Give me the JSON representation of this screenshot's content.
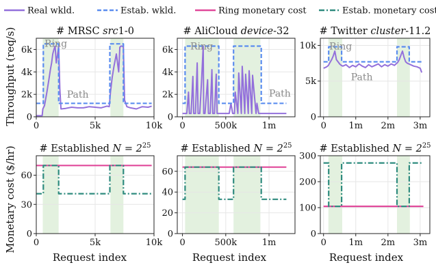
{
  "legend": {
    "items": [
      {
        "label": "Real wkld.",
        "color": "#9370DB",
        "style": "solid"
      },
      {
        "label": "Estab. wkld.",
        "color": "#5B8DEF",
        "style": "dashed"
      },
      {
        "label": "Ring monetary cost",
        "color": "#E0489A",
        "style": "solid"
      },
      {
        "label": "Estab. monetary cost",
        "color": "#2E8B7E",
        "style": "dashdot"
      }
    ]
  },
  "labels": {
    "ylabel_top": "Throughput (req/s)",
    "ylabel_bottom": "Monetary cost ($/hr)",
    "xlabel": "Request index",
    "ring": "Ring",
    "path": "Path"
  },
  "colors": {
    "real": "#9370DB",
    "estab": "#5B8DEF",
    "ring_cost": "#E0489A",
    "estab_cost": "#2E8B7E",
    "shade": "#E3F1DF",
    "grid": "#e6e6e6"
  },
  "chart_data": [
    {
      "type": "line",
      "title_prefix": "# MRSC ",
      "title_italic": "src",
      "title_suffix": "1-0",
      "xlim": [
        0,
        10000
      ],
      "ylim": [
        0,
        7000
      ],
      "xticks": [
        0,
        5000,
        10000
      ],
      "xtick_labels": [
        "0",
        "5k",
        "10k"
      ],
      "yticks": [
        0,
        2000,
        4000,
        6000
      ],
      "ytick_labels": [
        "0",
        "2k",
        "4k",
        "6k"
      ],
      "shaded": [
        [
          550,
          1900
        ],
        [
          6300,
          7400
        ]
      ],
      "series": [
        {
          "name": "Real wkld.",
          "x": [
            0,
            500,
            560,
            700,
            900,
            1100,
            1200,
            1300,
            1400,
            1500,
            1600,
            1700,
            1800,
            1900,
            2000,
            2100,
            2500,
            3000,
            3500,
            4000,
            4500,
            5000,
            5500,
            6000,
            6200,
            6300,
            6450,
            6600,
            6800,
            7000,
            7100,
            7200,
            7300,
            7400,
            7500,
            7700,
            8000,
            8500,
            9000,
            9500,
            9800
          ],
          "y": [
            100,
            100,
            700,
            1000,
            2200,
            3500,
            4200,
            4800,
            5600,
            6000,
            6300,
            4800,
            5500,
            6300,
            2500,
            700,
            750,
            850,
            800,
            800,
            900,
            850,
            800,
            950,
            900,
            2200,
            3500,
            4500,
            5600,
            4000,
            6200,
            6300,
            6300,
            6200,
            1500,
            900,
            800,
            700,
            900,
            850,
            950
          ]
        },
        {
          "name": "Estab. wkld.",
          "x": [
            0,
            600,
            600,
            1900,
            1900,
            6250,
            6250,
            7400,
            7400,
            9800
          ],
          "y": [
            1200,
            1200,
            6500,
            6500,
            1200,
            1200,
            6500,
            6500,
            1200,
            1200
          ]
        }
      ],
      "annotations": {
        "ring": [
          700,
          6250
        ],
        "path": [
          2600,
          1700
        ]
      }
    },
    {
      "type": "line",
      "title_prefix": "# AliCloud ",
      "title_italic": "device",
      "title_suffix": "-32",
      "xlim": [
        -60000,
        1300000
      ],
      "ylim": [
        0,
        7000
      ],
      "xticks": [
        0,
        500000,
        1000000
      ],
      "xtick_labels": [
        "0",
        "500k",
        "1m"
      ],
      "yticks": [
        0,
        2000,
        4000,
        6000
      ],
      "ytick_labels": [
        "0",
        "2k",
        "4k",
        "6k"
      ],
      "shaded": [
        [
          30000,
          420000
        ],
        [
          590000,
          900000
        ]
      ],
      "series": [
        {
          "name": "Real wkld.",
          "x": [
            0,
            50000,
            70000,
            80000,
            100000,
            120000,
            130000,
            150000,
            170000,
            180000,
            200000,
            220000,
            240000,
            245000,
            260000,
            290000,
            300000,
            320000,
            340000,
            350000,
            370000,
            390000,
            400000,
            420000,
            450000,
            500000,
            540000,
            560000,
            580000,
            600000,
            610000,
            640000,
            650000,
            680000,
            690000,
            720000,
            730000,
            760000,
            770000,
            800000,
            810000,
            850000,
            860000,
            880000,
            900000,
            950000,
            1000000,
            1050000,
            1100000,
            1150000,
            1200000
          ],
          "y": [
            300,
            300,
            2200,
            300,
            300,
            3600,
            300,
            300,
            4800,
            300,
            300,
            3100,
            6300,
            300,
            300,
            3300,
            300,
            300,
            4200,
            300,
            300,
            3800,
            300,
            300,
            300,
            300,
            300,
            1200,
            300,
            300,
            2200,
            300,
            3900,
            300,
            4500,
            300,
            3800,
            300,
            4100,
            300,
            3700,
            300,
            1200,
            300,
            300,
            300,
            300,
            300,
            300,
            300,
            300
          ]
        },
        {
          "name": "Estab. wkld.",
          "x": [
            0,
            30000,
            30000,
            420000,
            420000,
            590000,
            590000,
            910000,
            910000,
            1200000
          ],
          "y": [
            1200,
            1200,
            6300,
            6300,
            1200,
            1200,
            6300,
            6300,
            1200,
            1200
          ]
        }
      ],
      "annotations": {
        "ring": [
          90000,
          6000
        ],
        "path": [
          1000000,
          1800
        ]
      }
    },
    {
      "type": "line",
      "title_prefix": "# Twitter ",
      "title_italic": "cluster",
      "title_suffix": "-11.2",
      "xlim": [
        -100000,
        3300000
      ],
      "ylim": [
        0,
        11000
      ],
      "xticks": [
        0,
        1000000,
        2000000,
        3000000
      ],
      "xtick_labels": [
        "0",
        "1m",
        "2m",
        "3m"
      ],
      "yticks": [
        0,
        5000,
        10000
      ],
      "ytick_labels": [
        "0",
        "5k",
        "10k"
      ],
      "shaded": [
        [
          150000,
          580000
        ],
        [
          2280000,
          2680000
        ]
      ],
      "series": [
        {
          "name": "Real wkld.",
          "x": [
            0,
            100000,
            150000,
            200000,
            250000,
            300000,
            350000,
            400000,
            450000,
            500000,
            550000,
            600000,
            700000,
            800000,
            900000,
            1000000,
            1100000,
            1200000,
            1300000,
            1400000,
            1500000,
            1600000,
            1700000,
            1800000,
            1900000,
            2000000,
            2100000,
            2200000,
            2300000,
            2350000,
            2400000,
            2450000,
            2500000,
            2550000,
            2600000,
            2700000,
            2800000,
            2900000,
            3000000,
            3050000
          ],
          "y": [
            6800,
            7000,
            7200,
            7600,
            8000,
            8500,
            9200,
            8000,
            7700,
            7400,
            7200,
            7100,
            7300,
            6900,
            7200,
            7000,
            7400,
            7100,
            6900,
            7300,
            7000,
            7200,
            7400,
            7000,
            7300,
            7100,
            7400,
            7200,
            7600,
            8000,
            8600,
            9200,
            8300,
            7700,
            7500,
            7300,
            7100,
            7000,
            6800,
            6200
          ]
        },
        {
          "name": "Estab. wkld.",
          "x": [
            0,
            160000,
            160000,
            560000,
            560000,
            2280000,
            2280000,
            2660000,
            2660000,
            3100000
          ],
          "y": [
            7700,
            7700,
            9800,
            9800,
            7700,
            7700,
            9800,
            9800,
            7700,
            7700
          ]
        }
      ],
      "annotations": {
        "ring": [
          180000,
          9400
        ],
        "path": [
          850000,
          5100
        ]
      }
    },
    {
      "type": "line",
      "title_prefix": "# Established ",
      "title_math": "N = 2",
      "xlim": [
        0,
        10000
      ],
      "ylim": [
        0,
        80
      ],
      "xticks": [
        0,
        5000,
        10000
      ],
      "xtick_labels": [
        "0",
        "5k",
        "10k"
      ],
      "yticks": [
        0,
        30,
        60
      ],
      "ytick_labels": [
        "0",
        "30",
        "60"
      ],
      "shaded": [
        [
          550,
          1900
        ],
        [
          6300,
          7400
        ]
      ],
      "series": [
        {
          "name": "Ring monetary cost",
          "x": [
            0,
            9800
          ],
          "y": [
            70,
            70
          ]
        },
        {
          "name": "Estab. monetary cost",
          "x": [
            0,
            600,
            600,
            1900,
            1900,
            6250,
            6250,
            7400,
            7400,
            9800
          ],
          "y": [
            41,
            41,
            70,
            70,
            41,
            41,
            70,
            70,
            41,
            41
          ]
        }
      ]
    },
    {
      "type": "line",
      "title_prefix": "# Established ",
      "title_math": "N = 2",
      "xlim": [
        -60000,
        1300000
      ],
      "ylim": [
        0,
        75
      ],
      "xticks": [
        0,
        500000,
        1000000
      ],
      "xtick_labels": [
        "0",
        "500k",
        "1m"
      ],
      "yticks": [
        0,
        20,
        40,
        60
      ],
      "ytick_labels": [
        "0",
        "20",
        "40",
        "60"
      ],
      "shaded": [
        [
          30000,
          420000
        ],
        [
          590000,
          900000
        ]
      ],
      "series": [
        {
          "name": "Ring monetary cost",
          "x": [
            0,
            1200000
          ],
          "y": [
            64,
            64
          ]
        },
        {
          "name": "Estab. monetary cost",
          "x": [
            0,
            30000,
            30000,
            420000,
            420000,
            590000,
            590000,
            910000,
            910000,
            1200000
          ],
          "y": [
            33,
            33,
            64,
            64,
            33,
            33,
            64,
            64,
            33,
            33
          ]
        }
      ]
    },
    {
      "type": "line",
      "title_prefix": "# Established ",
      "title_math": "N = 2",
      "xlim": [
        -100000,
        3300000
      ],
      "ylim": [
        0,
        300
      ],
      "xticks": [
        0,
        1000000,
        2000000,
        3000000
      ],
      "xtick_labels": [
        "0",
        "1m",
        "2m",
        "3m"
      ],
      "yticks": [
        0,
        100,
        200,
        300
      ],
      "ytick_labels": [
        "0",
        "100",
        "200",
        "300"
      ],
      "shaded": [
        [
          150000,
          580000
        ],
        [
          2280000,
          2680000
        ]
      ],
      "series": [
        {
          "name": "Ring monetary cost",
          "x": [
            0,
            3100000
          ],
          "y": [
            105,
            105
          ]
        },
        {
          "name": "Estab. monetary cost",
          "x": [
            0,
            160000,
            160000,
            560000,
            560000,
            2280000,
            2280000,
            2660000,
            2660000,
            3100000
          ],
          "y": [
            272,
            272,
            105,
            105,
            272,
            272,
            105,
            105,
            272,
            272
          ]
        }
      ]
    }
  ]
}
